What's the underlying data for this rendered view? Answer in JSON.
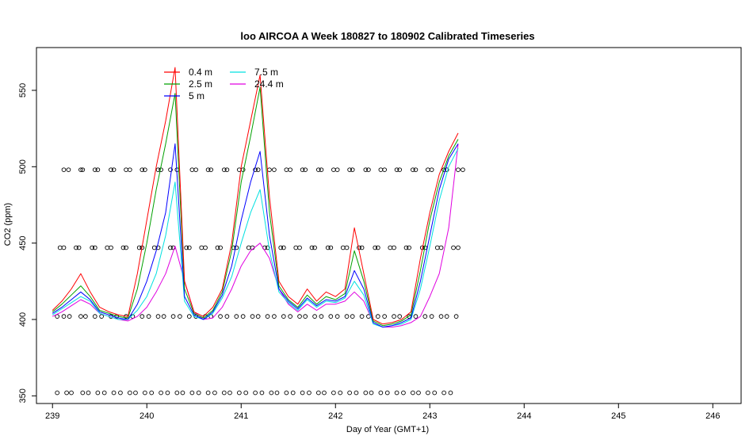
{
  "chart_data": {
    "type": "line",
    "title": "loo AIRCOA A  Week 180827 to 180902  Calibrated Timeseries",
    "xlabel": "Day of Year (GMT+1)",
    "ylabel": "CO2 (ppm)",
    "xlim": [
      238.83,
      246.3
    ],
    "ylim": [
      345,
      578
    ],
    "x_ticks": [
      239,
      240,
      241,
      242,
      243,
      244,
      245,
      246
    ],
    "y_ticks": [
      350,
      400,
      450,
      500,
      550
    ],
    "grid": false,
    "legend_position": "top-left",
    "legend": [
      {
        "name": "0.4 m",
        "color": "#ff0000"
      },
      {
        "name": "2.5 m",
        "color": "#00a000"
      },
      {
        "name": "5 m",
        "color": "#0000ff"
      },
      {
        "name": "7.5 m",
        "color": "#00e0e0"
      },
      {
        "name": "24.4 m",
        "color": "#e000e0"
      }
    ],
    "series": [
      {
        "name": "0.4 m",
        "color": "#ff0000",
        "x": [
          239.0,
          239.1,
          239.2,
          239.3,
          239.4,
          239.5,
          239.6,
          239.7,
          239.8,
          239.9,
          240.0,
          240.1,
          240.2,
          240.3,
          240.4,
          240.5,
          240.6,
          240.7,
          240.8,
          240.9,
          241.0,
          241.1,
          241.2,
          241.3,
          241.4,
          241.5,
          241.6,
          241.7,
          241.8,
          241.9,
          242.0,
          242.1,
          242.2,
          242.3,
          242.4,
          242.5,
          242.6,
          242.7,
          242.8,
          242.9,
          243.0,
          243.1,
          243.2,
          243.3
        ],
        "y": [
          406,
          412,
          420,
          430,
          418,
          408,
          405,
          403,
          402,
          430,
          465,
          500,
          530,
          565,
          425,
          405,
          402,
          408,
          420,
          450,
          500,
          530,
          560,
          480,
          425,
          415,
          410,
          420,
          412,
          418,
          415,
          420,
          460,
          430,
          400,
          397,
          398,
          400,
          405,
          440,
          470,
          495,
          510,
          522
        ]
      },
      {
        "name": "2.5 m",
        "color": "#00a000",
        "x": [
          239.0,
          239.1,
          239.2,
          239.3,
          239.4,
          239.5,
          239.6,
          239.7,
          239.8,
          239.9,
          240.0,
          240.1,
          240.2,
          240.3,
          240.4,
          240.5,
          240.6,
          240.7,
          240.8,
          240.9,
          241.0,
          241.1,
          241.2,
          241.3,
          241.4,
          241.5,
          241.6,
          241.7,
          241.8,
          241.9,
          242.0,
          242.1,
          242.2,
          242.3,
          242.4,
          242.5,
          242.6,
          242.7,
          242.8,
          242.9,
          243.0,
          243.1,
          243.2,
          243.3
        ],
        "y": [
          405,
          410,
          416,
          422,
          415,
          406,
          404,
          402,
          401,
          420,
          450,
          485,
          515,
          548,
          420,
          404,
          401,
          406,
          418,
          445,
          490,
          520,
          552,
          470,
          422,
          413,
          408,
          416,
          410,
          415,
          413,
          417,
          445,
          425,
          399,
          396,
          397,
          399,
          403,
          432,
          465,
          490,
          507,
          518
        ]
      },
      {
        "name": "5 m",
        "color": "#0000ff",
        "x": [
          239.0,
          239.1,
          239.2,
          239.3,
          239.4,
          239.5,
          239.6,
          239.7,
          239.8,
          239.9,
          240.0,
          240.1,
          240.2,
          240.3,
          240.4,
          240.5,
          240.6,
          240.7,
          240.8,
          240.9,
          241.0,
          241.1,
          241.2,
          241.3,
          241.4,
          241.5,
          241.6,
          241.7,
          241.8,
          241.9,
          242.0,
          242.1,
          242.2,
          242.3,
          242.4,
          242.5,
          242.6,
          242.7,
          242.8,
          242.9,
          243.0,
          243.1,
          243.2,
          243.3
        ],
        "y": [
          404,
          408,
          413,
          418,
          413,
          405,
          403,
          401,
          400,
          410,
          425,
          445,
          470,
          515,
          415,
          403,
          400,
          405,
          416,
          435,
          465,
          490,
          510,
          455,
          420,
          412,
          407,
          414,
          409,
          413,
          412,
          415,
          432,
          420,
          398,
          395,
          396,
          398,
          401,
          425,
          455,
          485,
          505,
          515
        ]
      },
      {
        "name": "7.5 m",
        "color": "#00e0e0",
        "x": [
          239.0,
          239.1,
          239.2,
          239.3,
          239.4,
          239.5,
          239.6,
          239.7,
          239.8,
          239.9,
          240.0,
          240.1,
          240.2,
          240.3,
          240.4,
          240.5,
          240.6,
          240.7,
          240.8,
          240.9,
          241.0,
          241.1,
          241.2,
          241.3,
          241.4,
          241.5,
          241.6,
          241.7,
          241.8,
          241.9,
          242.0,
          242.1,
          242.2,
          242.3,
          242.4,
          242.5,
          242.6,
          242.7,
          242.8,
          242.9,
          243.0,
          243.1,
          243.2,
          243.3
        ],
        "y": [
          403,
          407,
          411,
          415,
          412,
          404,
          402,
          400,
          400,
          406,
          415,
          430,
          455,
          490,
          412,
          402,
          400,
          404,
          414,
          428,
          450,
          470,
          485,
          445,
          418,
          411,
          406,
          413,
          408,
          412,
          411,
          414,
          425,
          416,
          397,
          395,
          396,
          397,
          400,
          420,
          448,
          478,
          500,
          512
        ]
      },
      {
        "name": "24.4 m",
        "color": "#e000e0",
        "x": [
          239.0,
          239.1,
          239.2,
          239.3,
          239.4,
          239.5,
          239.6,
          239.7,
          239.8,
          239.9,
          240.0,
          240.1,
          240.2,
          240.3,
          240.4,
          240.5,
          240.6,
          240.7,
          240.8,
          240.9,
          241.0,
          241.1,
          241.2,
          241.3,
          241.4,
          241.5,
          241.6,
          241.7,
          241.8,
          241.9,
          242.0,
          242.1,
          242.2,
          242.3,
          242.4,
          242.5,
          242.6,
          242.7,
          242.8,
          242.9,
          243.0,
          243.1,
          243.2,
          243.3
        ],
        "y": [
          402,
          405,
          409,
          413,
          410,
          404,
          402,
          400,
          399,
          402,
          408,
          418,
          430,
          448,
          425,
          405,
          400,
          401,
          408,
          420,
          435,
          445,
          450,
          440,
          420,
          410,
          405,
          410,
          406,
          410,
          410,
          412,
          418,
          412,
          398,
          395,
          395,
          396,
          398,
          402,
          415,
          430,
          460,
          515
        ]
      }
    ],
    "markers": {
      "symbol": "o",
      "rows": [
        {
          "y": 498,
          "x": [
            239.12,
            239.17,
            239.3,
            239.32,
            239.45,
            239.48,
            239.62,
            239.65,
            239.78,
            239.82,
            239.95,
            239.98,
            240.12,
            240.15,
            240.25,
            240.32,
            240.48,
            240.52,
            240.65,
            240.68,
            240.82,
            240.85,
            240.98,
            241.02,
            241.15,
            241.18,
            241.3,
            241.35,
            241.48,
            241.52,
            241.65,
            241.68,
            241.82,
            241.85,
            241.98,
            242.02,
            242.15,
            242.18,
            242.32,
            242.35,
            242.48,
            242.52,
            242.65,
            242.68,
            242.82,
            242.85,
            242.98,
            243.02,
            243.15,
            243.18,
            243.3,
            243.35
          ]
        },
        {
          "y": 447,
          "x": [
            239.08,
            239.12,
            239.25,
            239.28,
            239.42,
            239.45,
            239.58,
            239.62,
            239.75,
            239.78,
            239.92,
            239.95,
            240.08,
            240.12,
            240.25,
            240.28,
            240.42,
            240.45,
            240.58,
            240.62,
            240.75,
            240.78,
            240.92,
            240.95,
            241.08,
            241.12,
            241.25,
            241.28,
            241.42,
            241.45,
            241.58,
            241.62,
            241.75,
            241.78,
            241.92,
            241.95,
            242.08,
            242.12,
            242.25,
            242.28,
            242.42,
            242.45,
            242.58,
            242.62,
            242.75,
            242.78,
            242.92,
            242.95,
            243.08,
            243.12,
            243.25,
            243.3
          ]
        },
        {
          "y": 402,
          "x": [
            239.05,
            239.12,
            239.18,
            239.3,
            239.35,
            239.45,
            239.52,
            239.62,
            239.68,
            239.78,
            239.85,
            239.95,
            240.02,
            240.12,
            240.18,
            240.28,
            240.35,
            240.45,
            240.52,
            240.62,
            240.68,
            240.78,
            240.85,
            240.95,
            241.02,
            241.12,
            241.18,
            241.28,
            241.35,
            241.45,
            241.52,
            241.62,
            241.68,
            241.78,
            241.85,
            241.95,
            242.02,
            242.12,
            242.18,
            242.28,
            242.35,
            242.45,
            242.52,
            242.62,
            242.68,
            242.78,
            242.85,
            242.95,
            243.02,
            243.12,
            243.18,
            243.28
          ]
        },
        {
          "y": 352,
          "x": [
            239.05,
            239.15,
            239.2,
            239.32,
            239.38,
            239.48,
            239.55,
            239.65,
            239.72,
            239.82,
            239.88,
            239.98,
            240.05,
            240.15,
            240.22,
            240.32,
            240.38,
            240.48,
            240.55,
            240.65,
            240.72,
            240.82,
            240.88,
            240.98,
            241.05,
            241.15,
            241.22,
            241.32,
            241.38,
            241.48,
            241.55,
            241.65,
            241.72,
            241.82,
            241.88,
            241.98,
            242.05,
            242.15,
            242.22,
            242.32,
            242.38,
            242.48,
            242.55,
            242.65,
            242.72,
            242.82,
            242.88,
            242.98,
            243.05,
            243.15,
            243.22
          ]
        }
      ]
    }
  }
}
